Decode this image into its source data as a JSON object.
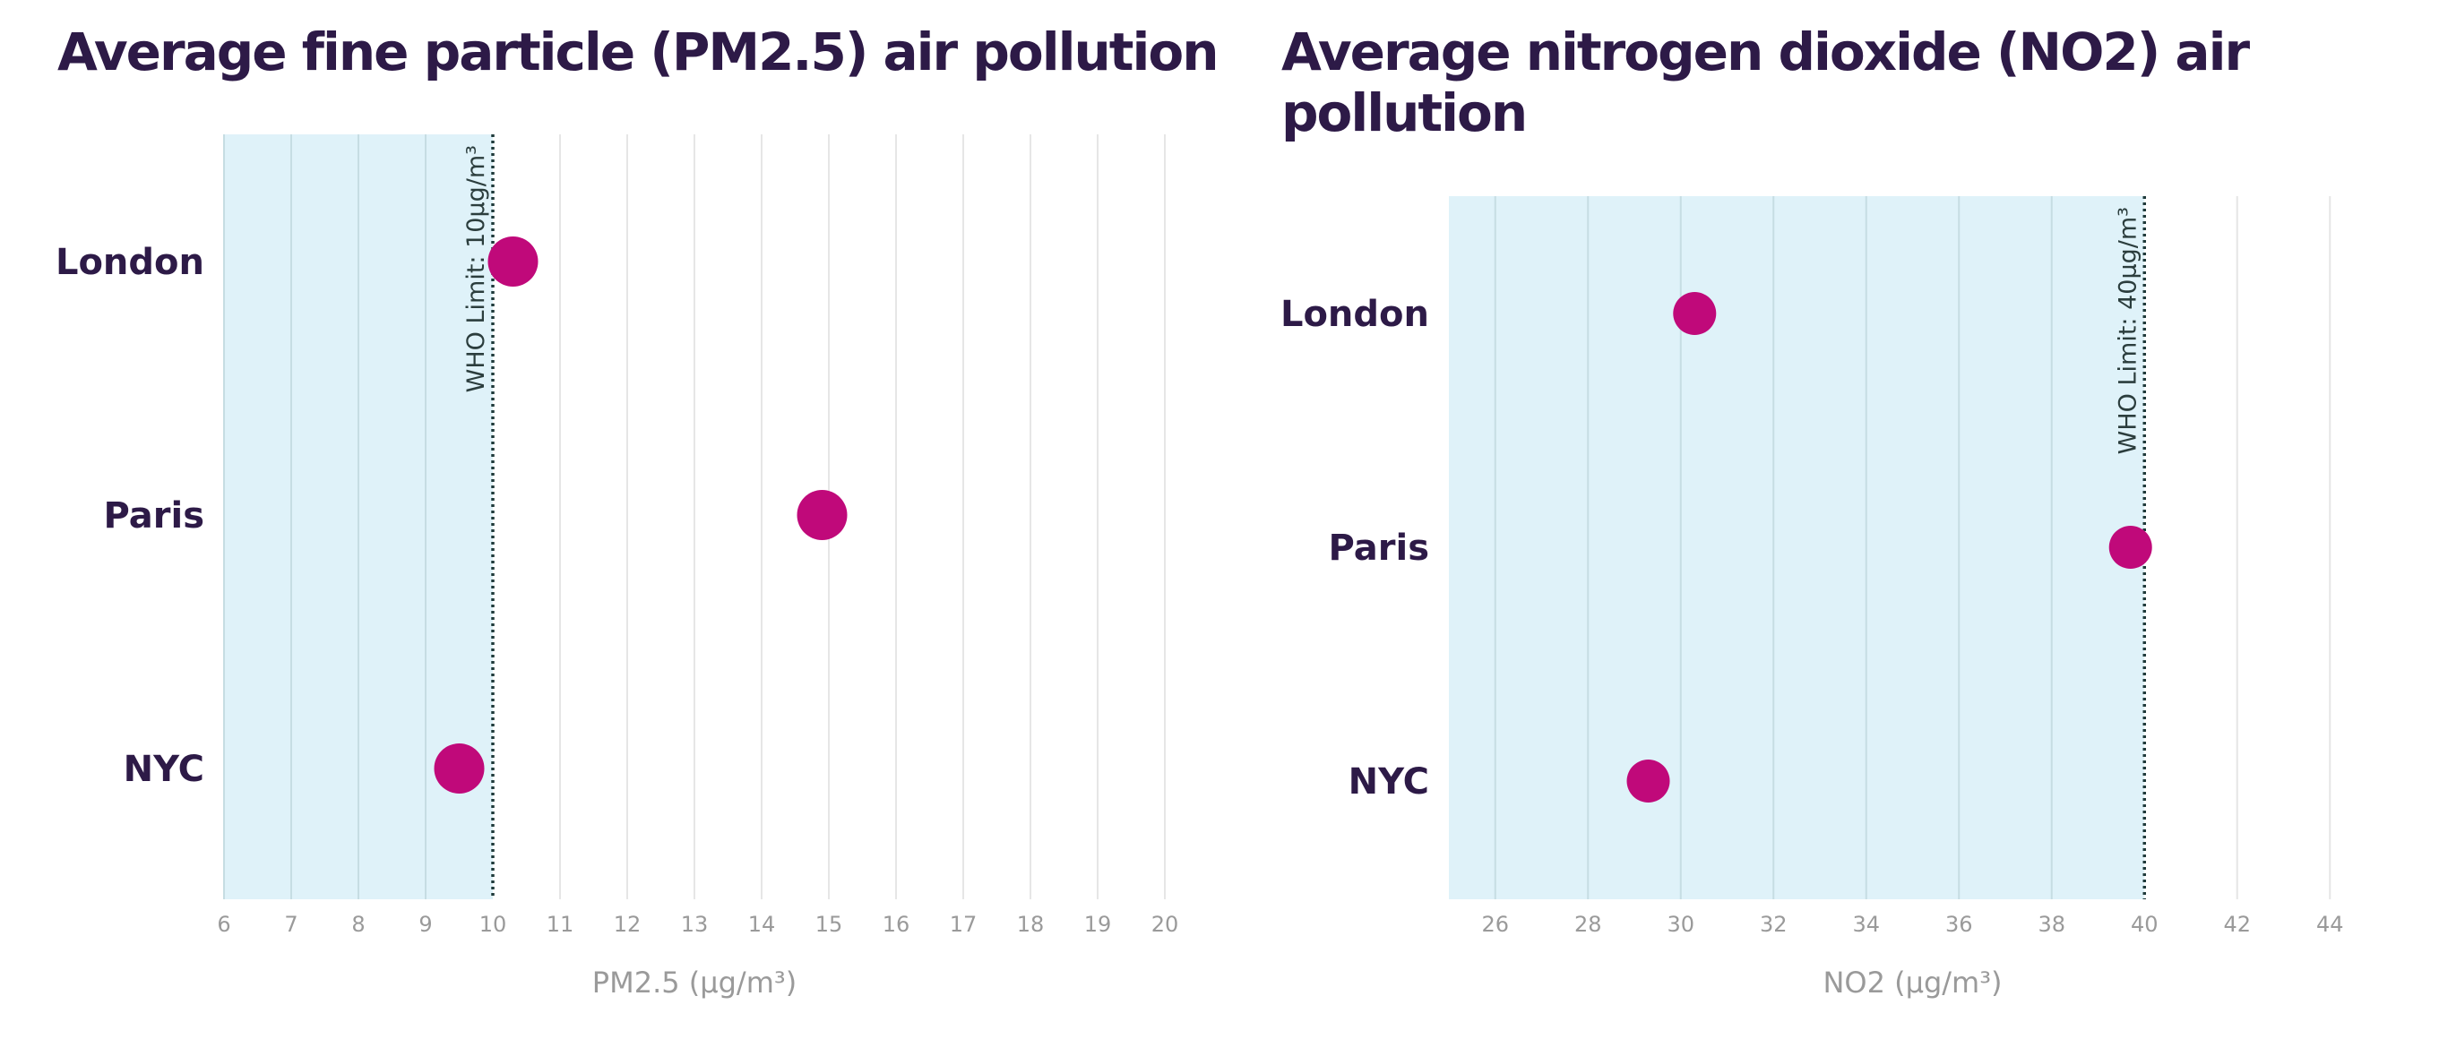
{
  "chart_data": [
    {
      "type": "scatter",
      "title": "Average fine particle (PM2.5) air pollution",
      "xlabel": "PM2.5 (µg/m³)",
      "ylabel": "",
      "categories": [
        "London",
        "Paris",
        "NYC"
      ],
      "values": [
        10.3,
        14.9,
        9.5
      ],
      "xlim": [
        6,
        20
      ],
      "xticks": [
        6,
        7,
        8,
        9,
        10,
        11,
        12,
        13,
        14,
        15,
        16,
        17,
        18,
        19,
        20
      ],
      "reference_line": {
        "value": 10,
        "label": "WHO Limit: 10µg/m³"
      },
      "grid": true,
      "colors": {
        "point": "#c0097a",
        "band": "#dff2f9",
        "title": "#2d1a47"
      }
    },
    {
      "type": "scatter",
      "title": "Average nitrogen dioxide (NO2) air pollution",
      "xlabel": "NO2 (µg/m³)",
      "ylabel": "",
      "categories": [
        "London",
        "Paris",
        "NYC"
      ],
      "values": [
        30.3,
        39.7,
        29.3
      ],
      "xlim": [
        25,
        45
      ],
      "xticks": [
        26,
        28,
        30,
        32,
        34,
        36,
        38,
        40,
        42,
        44
      ],
      "reference_line": {
        "value": 40,
        "label": "WHO Limit: 40µg/m³"
      },
      "grid": true,
      "colors": {
        "point": "#c0097a",
        "band": "#dff2f9",
        "title": "#2d1a47"
      }
    }
  ]
}
